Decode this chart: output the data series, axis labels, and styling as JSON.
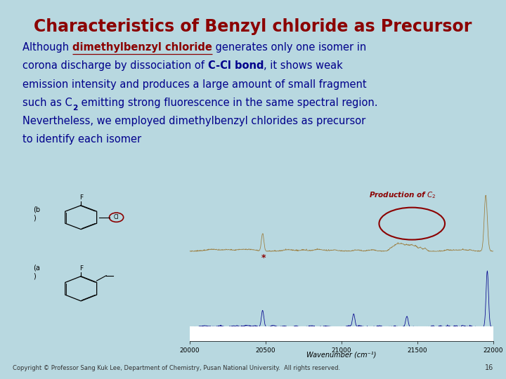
{
  "title": "Characteristics of Benzyl chloride as Precursor",
  "title_color": "#8B0000",
  "title_fontsize": 17,
  "slide_bg": "#b8d8e0",
  "content_bg": "#ffffff",
  "body_text_color": "#00008B",
  "body_fontsize": 10.5,
  "copyright_text": "Copyright © Professor Sang Kuk Lee, Department of Chemistry, Pusan National University.  All rights reserved.",
  "page_number": "16",
  "wavenumber_label": "Wavenumber (cm⁻¹)",
  "x_ticks": [
    20000,
    20500,
    21000,
    21500,
    22000
  ],
  "x_tick_labels": [
    "20000",
    "20500",
    "21000",
    "21500",
    "22000"
  ]
}
